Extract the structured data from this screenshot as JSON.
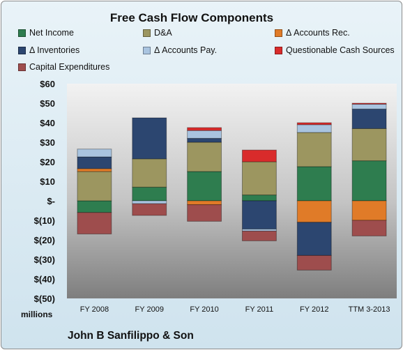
{
  "chart_data": {
    "type": "bar",
    "stacked": true,
    "title": "Free Cash Flow Components",
    "categories": [
      "FY 2008",
      "FY 2009",
      "FY 2010",
      "FY 2011",
      "FY 2012",
      "TTM 3-2013"
    ],
    "y_tick_labels": [
      "$60",
      "$50",
      "$40",
      "$30",
      "$20",
      "$10",
      "$-",
      "$(10)",
      "$(20)",
      "$(30)",
      "$(40)",
      "$(50)"
    ],
    "ylim": [
      -50,
      60
    ],
    "unit_label": "millions",
    "legend_position": "top",
    "grid": false,
    "series": [
      {
        "name": "Net Income",
        "color": "#2e7d4f",
        "values": [
          -6,
          7,
          15,
          3,
          17.5,
          20.5
        ]
      },
      {
        "name": "D&A",
        "color": "#9c9660",
        "values": [
          15,
          14.5,
          15,
          17,
          17.5,
          16.5
        ]
      },
      {
        "name": "Δ Accounts Rec.",
        "color": "#e07b28",
        "values": [
          1.5,
          0,
          -2,
          0,
          -11,
          -10
        ]
      },
      {
        "name": "Δ Inventories",
        "color": "#2c4670",
        "values": [
          6,
          21,
          2,
          -14.5,
          -17,
          10
        ]
      },
      {
        "name": "Δ Accounts Pay.",
        "color": "#a9c4e0",
        "values": [
          4,
          -1.5,
          4,
          -1,
          4,
          2.5
        ]
      },
      {
        "name": "Questionable Cash Sources",
        "color": "#d92b2b",
        "values": [
          0,
          0,
          1.5,
          6,
          1,
          0.5
        ]
      },
      {
        "name": "Capital Expenditures",
        "color": "#9e4d4d",
        "values": [
          -11,
          -6,
          -8.5,
          -5,
          -7.5,
          -8
        ]
      }
    ]
  },
  "footer": {
    "company": "John B Sanfilippo & Son"
  }
}
